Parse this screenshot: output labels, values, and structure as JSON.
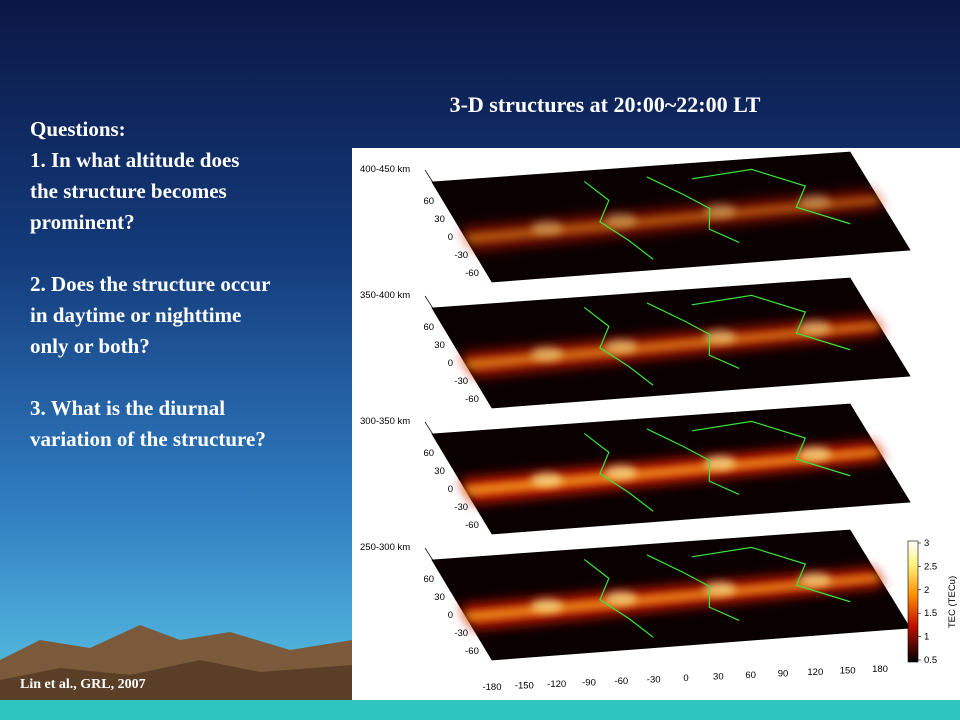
{
  "title": "3-D structures at 20:00~22:00 LT",
  "questions": {
    "heading": "Questions:",
    "items": [
      [
        "1. In what altitude does",
        "the structure becomes",
        "prominent?"
      ],
      [
        "2. Does the structure occur",
        "in daytime or nighttime",
        "only or both?"
      ],
      [
        "3. What is the diurnal",
        "variation of the structure?"
      ]
    ]
  },
  "citation": "Lin et al., GRL, 2007",
  "figure": {
    "panels": [
      {
        "altitude": "400-450 km"
      },
      {
        "altitude": "350-400 km"
      },
      {
        "altitude": "300-350 km"
      },
      {
        "altitude": "250-300 km"
      }
    ],
    "latitude_ticks": [
      "60",
      "30",
      "0",
      "-30",
      "-60"
    ],
    "longitude_ticks": [
      "-180",
      "-150",
      "-120",
      "-90",
      "-60",
      "-30",
      "0",
      "30",
      "60",
      "90",
      "120",
      "150",
      "180"
    ],
    "colorbar": {
      "label": "TEC (TECu)",
      "ticks": [
        "3",
        "2.5",
        "2",
        "1.5",
        "1",
        "0.5"
      ]
    }
  }
}
